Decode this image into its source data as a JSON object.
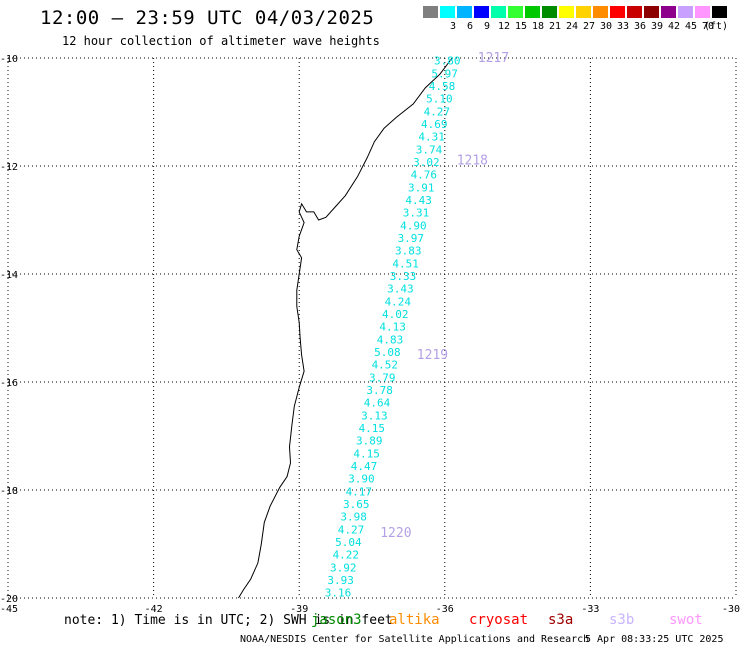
{
  "header": {
    "title": "12:00 – 23:59 UTC 04/03/2025",
    "subtitle": "12 hour collection of altimeter wave heights"
  },
  "legend": {
    "unit_label": "(ft)",
    "bins": [
      {
        "label": "",
        "color": "#7f7f7f"
      },
      {
        "label": "3",
        "color": "#00ffff"
      },
      {
        "label": "6",
        "color": "#00b4ff"
      },
      {
        "label": "9",
        "color": "#0000ff"
      },
      {
        "label": "12",
        "color": "#00ffaa"
      },
      {
        "label": "15",
        "color": "#33ff33"
      },
      {
        "label": "18",
        "color": "#00c800"
      },
      {
        "label": "21",
        "color": "#008c00"
      },
      {
        "label": "24",
        "color": "#ffff00"
      },
      {
        "label": "27",
        "color": "#ffd200"
      },
      {
        "label": "30",
        "color": "#ff8c00"
      },
      {
        "label": "33",
        "color": "#ff0000"
      },
      {
        "label": "36",
        "color": "#c80000"
      },
      {
        "label": "39",
        "color": "#8c0000"
      },
      {
        "label": "42",
        "color": "#8c008c"
      },
      {
        "label": "45",
        "color": "#c8a0ff"
      },
      {
        "label": "70",
        "color": "#ff96ff"
      },
      {
        "label": "",
        "color": "#000000"
      }
    ]
  },
  "map": {
    "lon_range": [
      -45,
      -30
    ],
    "lat_range": [
      -20,
      -10
    ],
    "lon_ticks": [
      "-45",
      "-42",
      "-39",
      "-36",
      "-33",
      "-30"
    ],
    "lat_ticks": [
      "-10",
      "-12",
      "-14",
      "-16",
      "-18",
      "-20"
    ],
    "coastline_color": "#000000",
    "grid_style": "dotted",
    "pass_times": [
      {
        "label": "1217",
        "lat": -10.0
      },
      {
        "label": "1218",
        "lat": -11.9
      },
      {
        "label": "1219",
        "lat": -15.5
      },
      {
        "label": "1220",
        "lat": -18.8
      }
    ],
    "pass_time_color": "#b4a0e6",
    "track_color": "#00e0e0",
    "wave_heights_ft": [
      "3.80",
      "5.97",
      "4.58",
      "5.10",
      "4.27",
      "4.69",
      "4.31",
      "3.74",
      "3.02",
      "4.76",
      "3.91",
      "4.43",
      "3.31",
      "4.90",
      "3.97",
      "3.83",
      "4.51",
      "3.33",
      "3.43",
      "4.24",
      "4.02",
      "4.13",
      "4.83",
      "5.08",
      "4.52",
      "3.79",
      "3.78",
      "4.64",
      "3.13",
      "4.15",
      "3.89",
      "4.15",
      "4.47",
      "3.90",
      "4.17",
      "3.65",
      "3.98",
      "4.27",
      "5.04",
      "4.22",
      "3.92",
      "3.93",
      "3.16"
    ]
  },
  "footer": {
    "note": "note: 1) Time is in UTC; 2) SWH is in feet",
    "satellites": [
      {
        "name": "jason3",
        "color": "#008c00"
      },
      {
        "name": "altika",
        "color": "#ff8c00"
      },
      {
        "name": "cryosat",
        "color": "#ff0000"
      },
      {
        "name": "s3a",
        "color": "#a00000"
      },
      {
        "name": "s3b",
        "color": "#c8b4ff"
      },
      {
        "name": "swot",
        "color": "#ff96ff"
      }
    ],
    "credit": "NOAA/NESDIS Center for Satellite Applications and Research",
    "timestamp": "5 Apr 08:33:25 UTC 2025"
  }
}
